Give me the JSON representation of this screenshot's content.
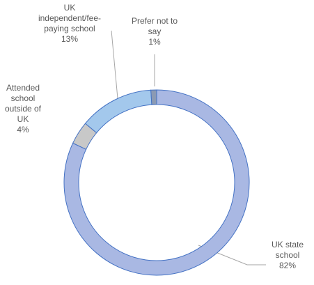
{
  "chart_data": {
    "type": "donut",
    "categories": [
      "UK state school",
      "Attended school outside of UK",
      "UK independent/fee-paying school",
      "Prefer not to say"
    ],
    "values": [
      82,
      4,
      13,
      1
    ],
    "value_labels": [
      "82%",
      "4%",
      "13%",
      "1%"
    ],
    "colors": [
      "#a9b8e3",
      "#c8c8c8",
      "#a3c8ec",
      "#8b9ab3"
    ]
  }
}
